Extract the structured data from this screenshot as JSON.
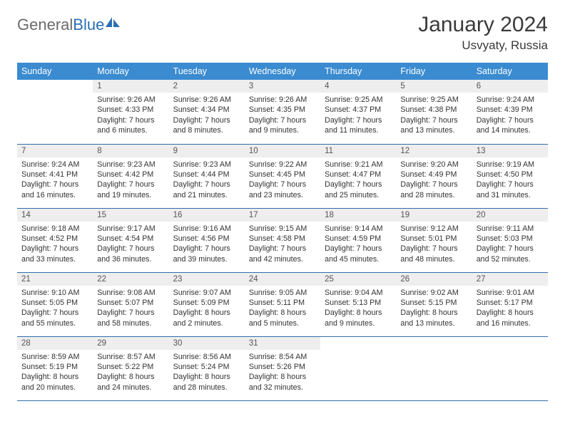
{
  "logo": {
    "text1": "General",
    "text2": "Blue"
  },
  "header": {
    "title": "January 2024",
    "location": "Usvyaty, Russia"
  },
  "colors": {
    "header_bg": "#3a8bd0",
    "header_text": "#ffffff",
    "daynum_bg": "#eeeeee",
    "cell_border": "#2f6fa8",
    "logo_gray": "#6a6a6a",
    "logo_blue": "#2a6fb5"
  },
  "weekdays": [
    "Sunday",
    "Monday",
    "Tuesday",
    "Wednesday",
    "Thursday",
    "Friday",
    "Saturday"
  ],
  "weeks": [
    [
      null,
      {
        "n": "1",
        "sunrise": "Sunrise: 9:26 AM",
        "sunset": "Sunset: 4:33 PM",
        "day1": "Daylight: 7 hours",
        "day2": "and 6 minutes."
      },
      {
        "n": "2",
        "sunrise": "Sunrise: 9:26 AM",
        "sunset": "Sunset: 4:34 PM",
        "day1": "Daylight: 7 hours",
        "day2": "and 8 minutes."
      },
      {
        "n": "3",
        "sunrise": "Sunrise: 9:26 AM",
        "sunset": "Sunset: 4:35 PM",
        "day1": "Daylight: 7 hours",
        "day2": "and 9 minutes."
      },
      {
        "n": "4",
        "sunrise": "Sunrise: 9:25 AM",
        "sunset": "Sunset: 4:37 PM",
        "day1": "Daylight: 7 hours",
        "day2": "and 11 minutes."
      },
      {
        "n": "5",
        "sunrise": "Sunrise: 9:25 AM",
        "sunset": "Sunset: 4:38 PM",
        "day1": "Daylight: 7 hours",
        "day2": "and 13 minutes."
      },
      {
        "n": "6",
        "sunrise": "Sunrise: 9:24 AM",
        "sunset": "Sunset: 4:39 PM",
        "day1": "Daylight: 7 hours",
        "day2": "and 14 minutes."
      }
    ],
    [
      {
        "n": "7",
        "sunrise": "Sunrise: 9:24 AM",
        "sunset": "Sunset: 4:41 PM",
        "day1": "Daylight: 7 hours",
        "day2": "and 16 minutes."
      },
      {
        "n": "8",
        "sunrise": "Sunrise: 9:23 AM",
        "sunset": "Sunset: 4:42 PM",
        "day1": "Daylight: 7 hours",
        "day2": "and 19 minutes."
      },
      {
        "n": "9",
        "sunrise": "Sunrise: 9:23 AM",
        "sunset": "Sunset: 4:44 PM",
        "day1": "Daylight: 7 hours",
        "day2": "and 21 minutes."
      },
      {
        "n": "10",
        "sunrise": "Sunrise: 9:22 AM",
        "sunset": "Sunset: 4:45 PM",
        "day1": "Daylight: 7 hours",
        "day2": "and 23 minutes."
      },
      {
        "n": "11",
        "sunrise": "Sunrise: 9:21 AM",
        "sunset": "Sunset: 4:47 PM",
        "day1": "Daylight: 7 hours",
        "day2": "and 25 minutes."
      },
      {
        "n": "12",
        "sunrise": "Sunrise: 9:20 AM",
        "sunset": "Sunset: 4:49 PM",
        "day1": "Daylight: 7 hours",
        "day2": "and 28 minutes."
      },
      {
        "n": "13",
        "sunrise": "Sunrise: 9:19 AM",
        "sunset": "Sunset: 4:50 PM",
        "day1": "Daylight: 7 hours",
        "day2": "and 31 minutes."
      }
    ],
    [
      {
        "n": "14",
        "sunrise": "Sunrise: 9:18 AM",
        "sunset": "Sunset: 4:52 PM",
        "day1": "Daylight: 7 hours",
        "day2": "and 33 minutes."
      },
      {
        "n": "15",
        "sunrise": "Sunrise: 9:17 AM",
        "sunset": "Sunset: 4:54 PM",
        "day1": "Daylight: 7 hours",
        "day2": "and 36 minutes."
      },
      {
        "n": "16",
        "sunrise": "Sunrise: 9:16 AM",
        "sunset": "Sunset: 4:56 PM",
        "day1": "Daylight: 7 hours",
        "day2": "and 39 minutes."
      },
      {
        "n": "17",
        "sunrise": "Sunrise: 9:15 AM",
        "sunset": "Sunset: 4:58 PM",
        "day1": "Daylight: 7 hours",
        "day2": "and 42 minutes."
      },
      {
        "n": "18",
        "sunrise": "Sunrise: 9:14 AM",
        "sunset": "Sunset: 4:59 PM",
        "day1": "Daylight: 7 hours",
        "day2": "and 45 minutes."
      },
      {
        "n": "19",
        "sunrise": "Sunrise: 9:12 AM",
        "sunset": "Sunset: 5:01 PM",
        "day1": "Daylight: 7 hours",
        "day2": "and 48 minutes."
      },
      {
        "n": "20",
        "sunrise": "Sunrise: 9:11 AM",
        "sunset": "Sunset: 5:03 PM",
        "day1": "Daylight: 7 hours",
        "day2": "and 52 minutes."
      }
    ],
    [
      {
        "n": "21",
        "sunrise": "Sunrise: 9:10 AM",
        "sunset": "Sunset: 5:05 PM",
        "day1": "Daylight: 7 hours",
        "day2": "and 55 minutes."
      },
      {
        "n": "22",
        "sunrise": "Sunrise: 9:08 AM",
        "sunset": "Sunset: 5:07 PM",
        "day1": "Daylight: 7 hours",
        "day2": "and 58 minutes."
      },
      {
        "n": "23",
        "sunrise": "Sunrise: 9:07 AM",
        "sunset": "Sunset: 5:09 PM",
        "day1": "Daylight: 8 hours",
        "day2": "and 2 minutes."
      },
      {
        "n": "24",
        "sunrise": "Sunrise: 9:05 AM",
        "sunset": "Sunset: 5:11 PM",
        "day1": "Daylight: 8 hours",
        "day2": "and 5 minutes."
      },
      {
        "n": "25",
        "sunrise": "Sunrise: 9:04 AM",
        "sunset": "Sunset: 5:13 PM",
        "day1": "Daylight: 8 hours",
        "day2": "and 9 minutes."
      },
      {
        "n": "26",
        "sunrise": "Sunrise: 9:02 AM",
        "sunset": "Sunset: 5:15 PM",
        "day1": "Daylight: 8 hours",
        "day2": "and 13 minutes."
      },
      {
        "n": "27",
        "sunrise": "Sunrise: 9:01 AM",
        "sunset": "Sunset: 5:17 PM",
        "day1": "Daylight: 8 hours",
        "day2": "and 16 minutes."
      }
    ],
    [
      {
        "n": "28",
        "sunrise": "Sunrise: 8:59 AM",
        "sunset": "Sunset: 5:19 PM",
        "day1": "Daylight: 8 hours",
        "day2": "and 20 minutes."
      },
      {
        "n": "29",
        "sunrise": "Sunrise: 8:57 AM",
        "sunset": "Sunset: 5:22 PM",
        "day1": "Daylight: 8 hours",
        "day2": "and 24 minutes."
      },
      {
        "n": "30",
        "sunrise": "Sunrise: 8:56 AM",
        "sunset": "Sunset: 5:24 PM",
        "day1": "Daylight: 8 hours",
        "day2": "and 28 minutes."
      },
      {
        "n": "31",
        "sunrise": "Sunrise: 8:54 AM",
        "sunset": "Sunset: 5:26 PM",
        "day1": "Daylight: 8 hours",
        "day2": "and 32 minutes."
      },
      null,
      null,
      null
    ]
  ]
}
